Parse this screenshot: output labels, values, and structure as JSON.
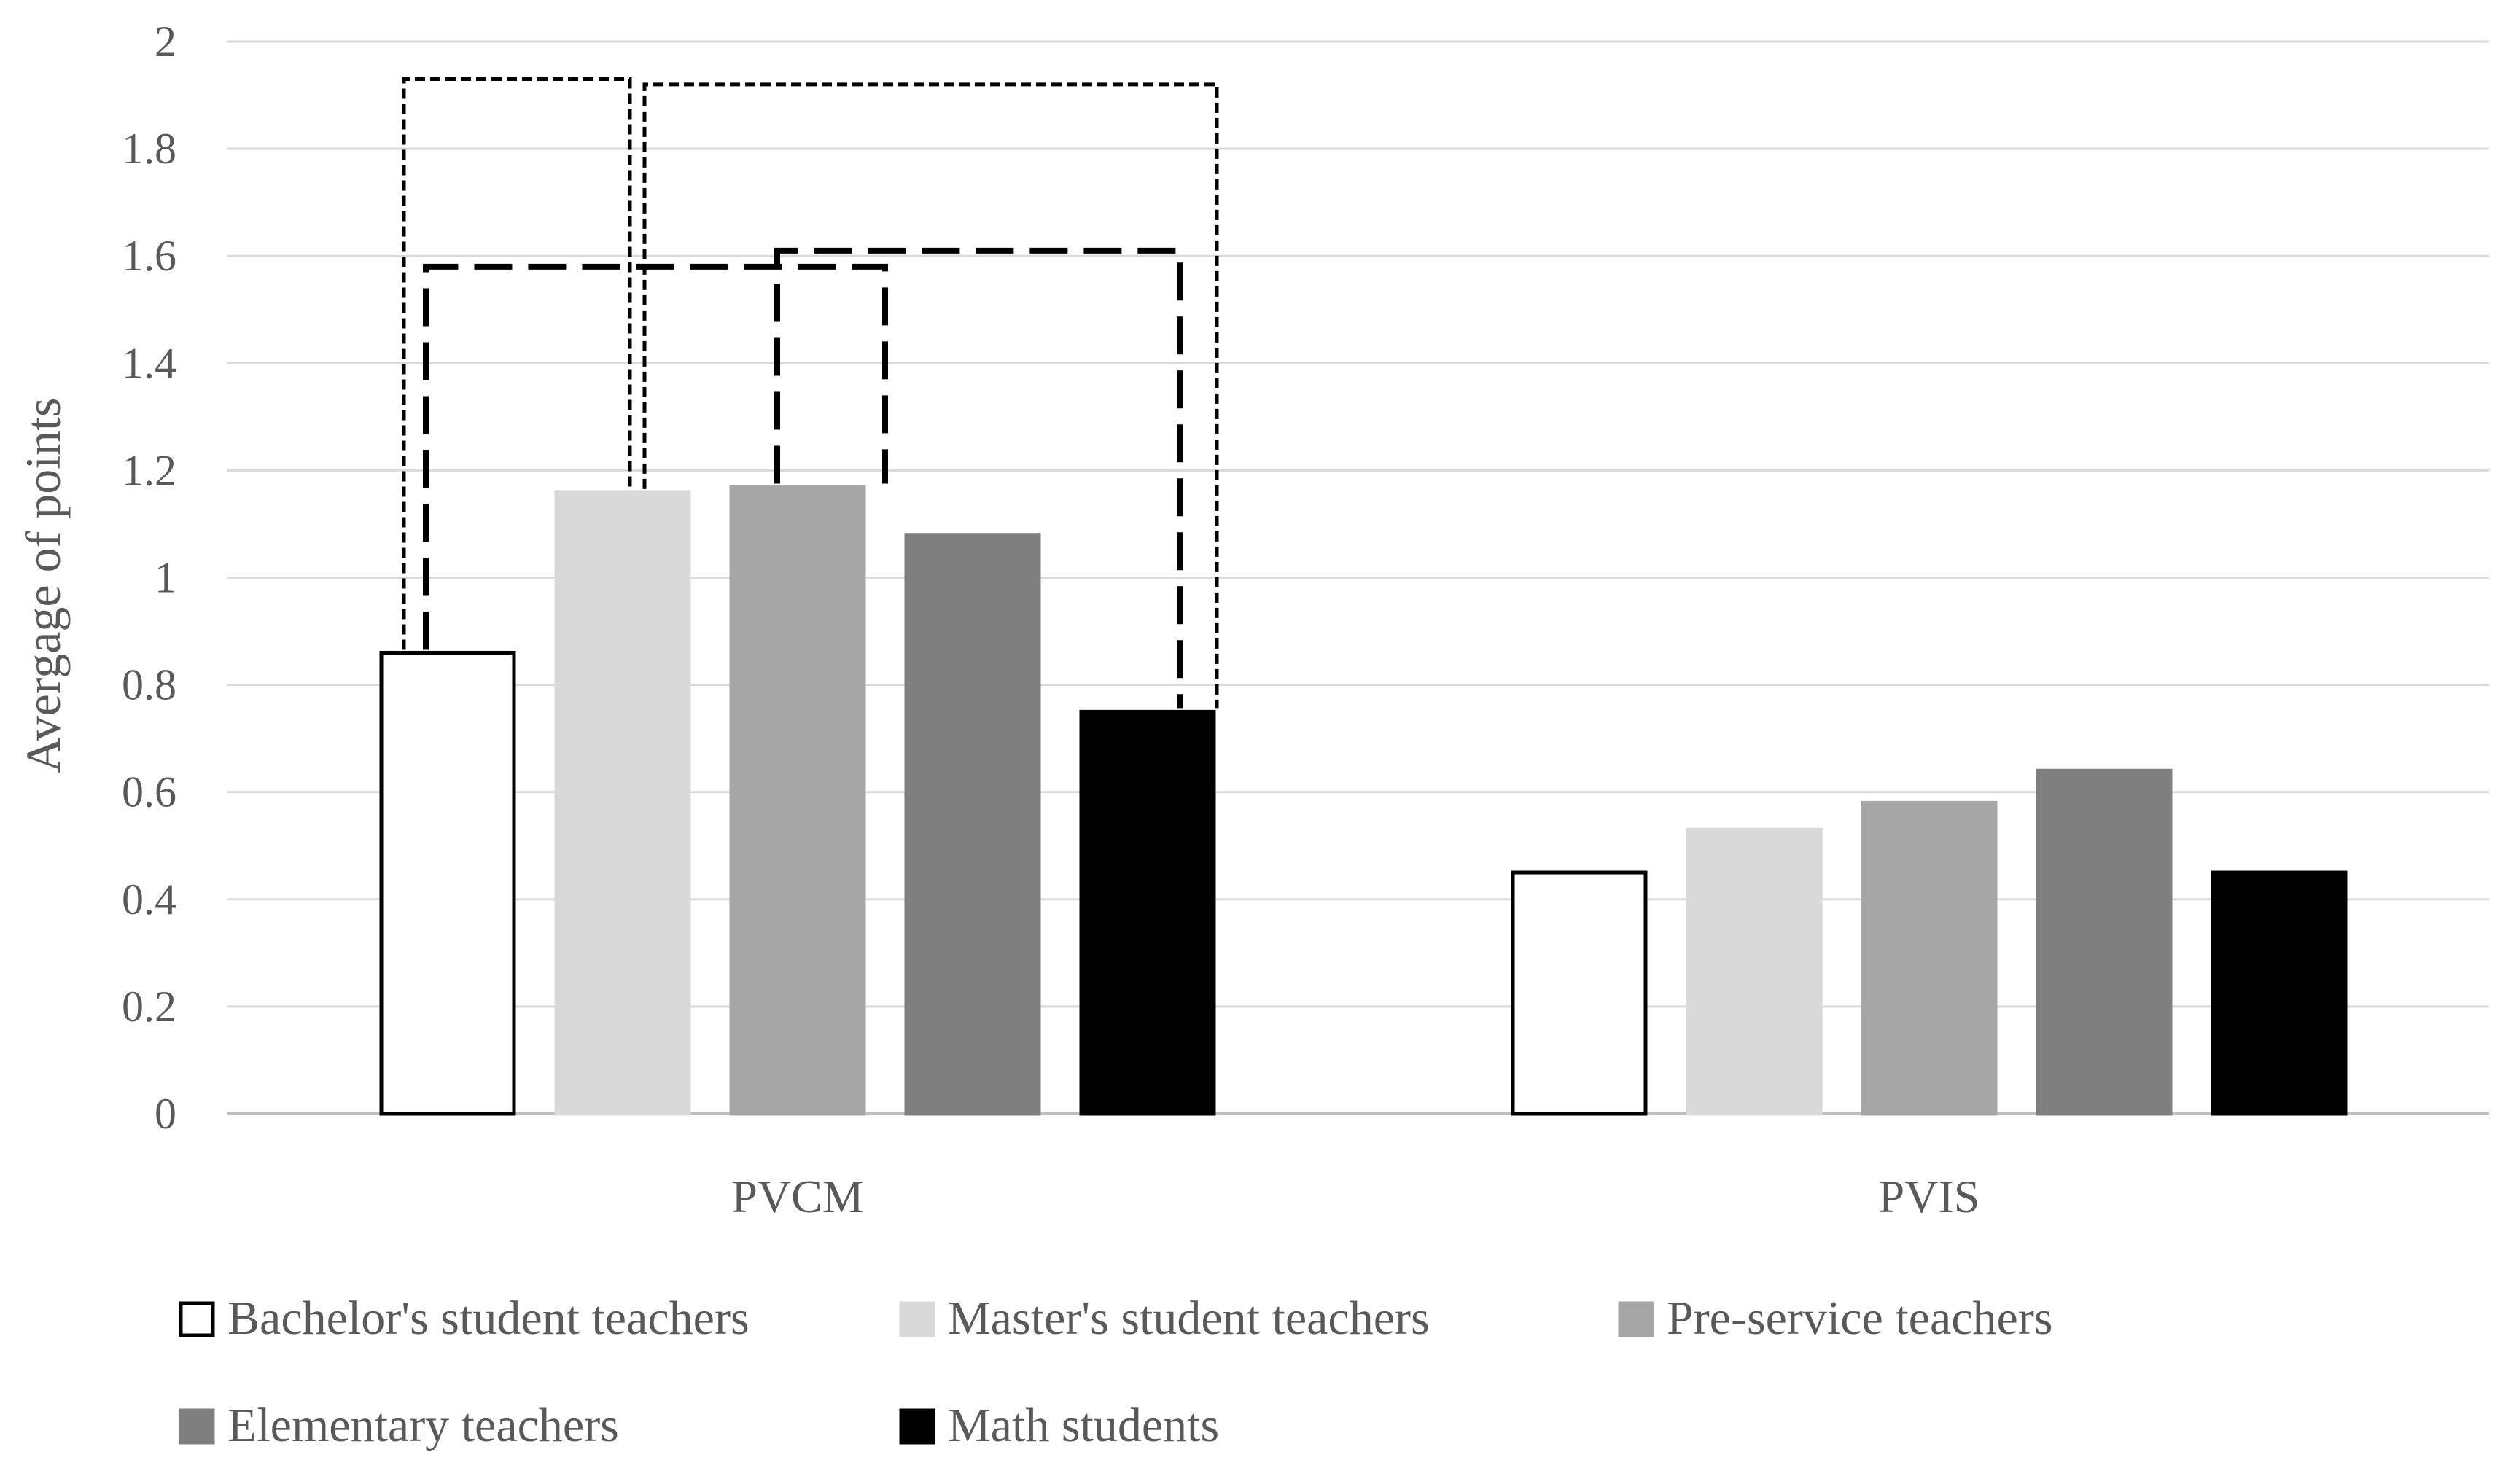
{
  "chart_data": {
    "type": "bar",
    "title": "",
    "xlabel": "",
    "ylabel": "Avergage of points",
    "ylim": [
      0,
      2
    ],
    "yticks": [
      "0",
      "0.2",
      "0.4",
      "0.6",
      "0.8",
      "1",
      "1.2",
      "1.4",
      "1.6",
      "1.8",
      "2"
    ],
    "grid": true,
    "legend_position": "bottom",
    "categories": [
      "PVCM",
      "PVIS"
    ],
    "series": [
      {
        "name": "Bachelor's student teachers",
        "values": [
          0.86,
          0.45
        ],
        "color": "#ffffff",
        "stroke": "#000000"
      },
      {
        "name": "Master's student teachers",
        "values": [
          1.16,
          0.53
        ],
        "color": "#d9d9d9",
        "stroke": "#d9d9d9"
      },
      {
        "name": "Pre-service teachers",
        "values": [
          1.17,
          0.58
        ],
        "color": "#a6a6a6",
        "stroke": "#a6a6a6"
      },
      {
        "name": "Elementary teachers",
        "values": [
          1.08,
          0.64
        ],
        "color": "#7f7f7f",
        "stroke": "#7f7f7f"
      },
      {
        "name": "Math students",
        "values": [
          0.75,
          0.45
        ],
        "color": "#000000",
        "stroke": "#000000"
      }
    ],
    "annotations": [
      {
        "type": "significance-bracket",
        "style": "dotted",
        "category": "PVCM",
        "from_series": 0,
        "to_series": 1,
        "level": 1.93
      },
      {
        "type": "significance-bracket",
        "style": "dotted",
        "category": "PVCM",
        "from_series": 1,
        "to_series": 4,
        "level": 1.92
      },
      {
        "type": "significance-bracket",
        "style": "dashed",
        "category": "PVCM",
        "from_series": 0,
        "to_series": 2,
        "level": 1.58
      },
      {
        "type": "significance-bracket",
        "style": "dashed",
        "category": "PVCM",
        "from_series": 2,
        "to_series": 4,
        "level": 1.61
      }
    ]
  }
}
